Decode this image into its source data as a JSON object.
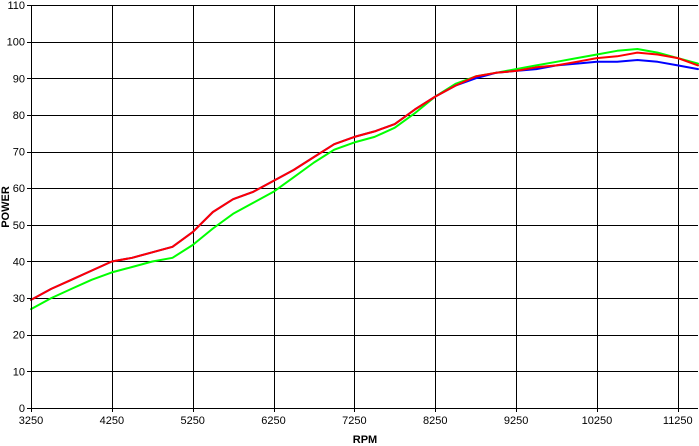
{
  "chart_data": {
    "type": "line",
    "title": "",
    "xlabel": "RPM",
    "ylabel": "POWER",
    "xlim": [
      3250,
      11500
    ],
    "ylim": [
      0,
      110
    ],
    "x_ticks": [
      3250,
      4250,
      5250,
      6250,
      7250,
      8250,
      9250,
      10250,
      11250
    ],
    "y_ticks": [
      0,
      10,
      20,
      30,
      40,
      50,
      60,
      70,
      80,
      90,
      100,
      110
    ],
    "grid": true,
    "legend": "none",
    "series": [
      {
        "color": "#0000ff",
        "points": [
          [
            3250,
            29.5
          ],
          [
            3500,
            32.5
          ],
          [
            3750,
            35
          ],
          [
            4000,
            37.5
          ],
          [
            4250,
            40
          ],
          [
            4500,
            41
          ],
          [
            4750,
            42.5
          ],
          [
            5000,
            44
          ],
          [
            5250,
            48
          ],
          [
            5500,
            53.5
          ],
          [
            5750,
            57
          ],
          [
            6000,
            59
          ],
          [
            6250,
            62
          ],
          [
            6500,
            65
          ],
          [
            6750,
            68.5
          ],
          [
            7000,
            72
          ],
          [
            7250,
            74
          ],
          [
            7500,
            75.5
          ],
          [
            7750,
            77.5
          ],
          [
            8000,
            81.5
          ],
          [
            8250,
            85
          ],
          [
            8500,
            88
          ],
          [
            8750,
            90
          ],
          [
            9000,
            91.5
          ],
          [
            9250,
            92
          ],
          [
            9500,
            92.5
          ],
          [
            9750,
            93.5
          ],
          [
            10000,
            94
          ],
          [
            10250,
            94.5
          ],
          [
            10500,
            94.5
          ],
          [
            10750,
            95
          ],
          [
            11000,
            94.5
          ],
          [
            11250,
            93.5
          ],
          [
            11500,
            92.5
          ]
        ]
      },
      {
        "color": "#ff0000",
        "points": [
          [
            3250,
            29.5
          ],
          [
            3500,
            32.5
          ],
          [
            3750,
            35
          ],
          [
            4000,
            37.5
          ],
          [
            4250,
            40
          ],
          [
            4500,
            41
          ],
          [
            4750,
            42.5
          ],
          [
            5000,
            44
          ],
          [
            5250,
            48
          ],
          [
            5500,
            53.5
          ],
          [
            5750,
            57
          ],
          [
            6000,
            59
          ],
          [
            6250,
            62
          ],
          [
            6500,
            65
          ],
          [
            6750,
            68.5
          ],
          [
            7000,
            72
          ],
          [
            7250,
            74
          ],
          [
            7500,
            75.5
          ],
          [
            7750,
            77.5
          ],
          [
            8000,
            81.5
          ],
          [
            8250,
            85
          ],
          [
            8500,
            88
          ],
          [
            8750,
            90.5
          ],
          [
            9000,
            91.5
          ],
          [
            9250,
            92
          ],
          [
            9500,
            93
          ],
          [
            9750,
            93.5
          ],
          [
            10000,
            94.5
          ],
          [
            10250,
            95.5
          ],
          [
            10500,
            96
          ],
          [
            10750,
            97
          ],
          [
            11000,
            96.5
          ],
          [
            11250,
            95.5
          ],
          [
            11500,
            93.5
          ]
        ]
      },
      {
        "color": "#00ff00",
        "points": [
          [
            3250,
            27
          ],
          [
            3500,
            30
          ],
          [
            3750,
            32.5
          ],
          [
            4000,
            35
          ],
          [
            4250,
            37
          ],
          [
            4500,
            38.5
          ],
          [
            4750,
            40
          ],
          [
            5000,
            41
          ],
          [
            5250,
            44.5
          ],
          [
            5500,
            49
          ],
          [
            5750,
            53
          ],
          [
            6000,
            56
          ],
          [
            6250,
            59
          ],
          [
            6500,
            63
          ],
          [
            6750,
            67
          ],
          [
            7000,
            70.5
          ],
          [
            7250,
            72.5
          ],
          [
            7500,
            74
          ],
          [
            7750,
            76.5
          ],
          [
            8000,
            80.5
          ],
          [
            8250,
            85
          ],
          [
            8500,
            88.5
          ],
          [
            8750,
            90.5
          ],
          [
            9000,
            91.5
          ],
          [
            9250,
            92.5
          ],
          [
            9500,
            93.5
          ],
          [
            9750,
            94.5
          ],
          [
            10000,
            95.5
          ],
          [
            10250,
            96.5
          ],
          [
            10500,
            97.5
          ],
          [
            10750,
            98
          ],
          [
            11000,
            97
          ],
          [
            11250,
            95.5
          ],
          [
            11500,
            94
          ]
        ]
      }
    ]
  }
}
